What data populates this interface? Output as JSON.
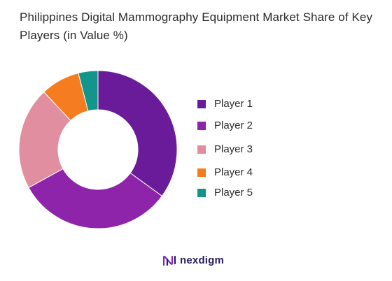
{
  "title": "Philippines Digital Mammography Equipment Market Share of Key Players (in Value %)",
  "brand": {
    "name": "nexdigm",
    "icon": "nexdigm-logo-icon",
    "color": "#2a2060"
  },
  "chart_data": {
    "type": "pie",
    "donut": true,
    "title": "Philippines Digital Mammography Equipment Market Share of Key Players (in Value %)",
    "legend_position": "right",
    "categories": [
      "Player 1",
      "Player 2",
      "Player 3",
      "Player 4",
      "Player 5"
    ],
    "values": [
      35,
      32,
      21,
      8,
      4
    ],
    "colors": [
      "#6a1b9a",
      "#8e24aa",
      "#e08ea0",
      "#f57c1f",
      "#13958c"
    ]
  }
}
